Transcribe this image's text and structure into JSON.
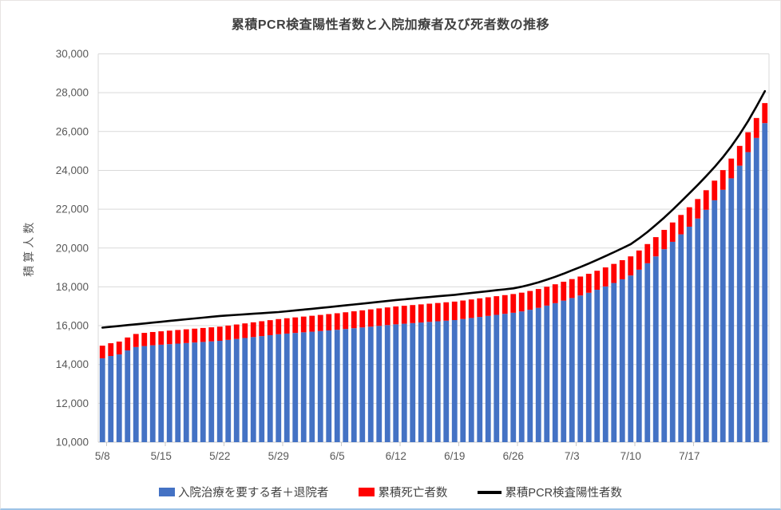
{
  "chart_data": {
    "type": "bar",
    "subtype": "stacked-bar-with-line",
    "title": "累積PCR検査陽性者数と入院加療者及び死者数の推移",
    "xlabel": "",
    "ylabel": "積算人数",
    "ylim": [
      10000,
      30000
    ],
    "ytick_step": 2000,
    "grid": true,
    "legend_position": "bottom",
    "y_tick_labels": [
      "10,000",
      "12,000",
      "14,000",
      "16,000",
      "18,000",
      "20,000",
      "22,000",
      "24,000",
      "26,000",
      "28,000",
      "30,000"
    ],
    "x_tick_labels": [
      "5/8",
      "5/15",
      "5/22",
      "5/29",
      "6/5",
      "6/12",
      "6/19",
      "6/26",
      "7/3",
      "7/10",
      "7/17"
    ],
    "x_label_interval": 7,
    "categories": [
      "5/8",
      "5/9",
      "5/10",
      "5/11",
      "5/12",
      "5/13",
      "5/14",
      "5/15",
      "5/16",
      "5/17",
      "5/18",
      "5/19",
      "5/20",
      "5/21",
      "5/22",
      "5/23",
      "5/24",
      "5/25",
      "5/26",
      "5/27",
      "5/28",
      "5/29",
      "5/30",
      "5/31",
      "6/1",
      "6/2",
      "6/3",
      "6/4",
      "6/5",
      "6/6",
      "6/7",
      "6/8",
      "6/9",
      "6/10",
      "6/11",
      "6/12",
      "6/13",
      "6/14",
      "6/15",
      "6/16",
      "6/17",
      "6/18",
      "6/19",
      "6/20",
      "6/21",
      "6/22",
      "6/23",
      "6/24",
      "6/25",
      "6/26",
      "6/27",
      "6/28",
      "6/29",
      "6/30",
      "7/1",
      "7/2",
      "7/3",
      "7/4",
      "7/5",
      "7/6",
      "7/7",
      "7/8",
      "7/9",
      "7/10",
      "7/11",
      "7/12",
      "7/13",
      "7/14",
      "7/15",
      "7/16",
      "7/17",
      "7/18",
      "7/19",
      "7/20",
      "7/21",
      "7/22",
      "7/23",
      "7/24",
      "7/25",
      "7/26"
    ],
    "series": [
      {
        "name": "入院治療を要する者＋退院者",
        "type": "bar",
        "stack": true,
        "color": "#4472C4",
        "values": [
          14320,
          14440,
          14520,
          14725,
          14900,
          14950,
          14990,
          15020,
          15049,
          15077,
          15106,
          15134,
          15163,
          15191,
          15220,
          15269,
          15317,
          15366,
          15414,
          15463,
          15511,
          15560,
          15593,
          15626,
          15659,
          15691,
          15724,
          15757,
          15790,
          15830,
          15870,
          15910,
          15950,
          15990,
          16030,
          16070,
          16101,
          16133,
          16164,
          16196,
          16227,
          16259,
          16290,
          16344,
          16397,
          16451,
          16504,
          16558,
          16611,
          16665,
          16735,
          16820,
          16920,
          17035,
          17160,
          17290,
          17425,
          17555,
          17695,
          17850,
          18020,
          18200,
          18390,
          18585,
          18885,
          19215,
          19570,
          19940,
          20320,
          20705,
          21100,
          21520,
          21970,
          22460,
          23000,
          23590,
          24240,
          24940,
          25670,
          26435
        ]
      },
      {
        "name": "累積死亡者数",
        "type": "bar",
        "stack": true,
        "color": "#FF0000",
        "values": [
          650,
          656,
          661,
          667,
          673,
          679,
          684,
          690,
          696,
          701,
          707,
          713,
          719,
          724,
          730,
          737,
          744,
          751,
          759,
          766,
          773,
          780,
          790,
          800,
          810,
          820,
          830,
          840,
          850,
          860,
          870,
          880,
          890,
          900,
          910,
          920,
          924,
          929,
          933,
          937,
          941,
          946,
          950,
          952,
          954,
          956,
          959,
          961,
          963,
          965,
          966,
          968,
          969,
          971,
          972,
          974,
          975,
          976,
          978,
          979,
          981,
          982,
          984,
          985,
          987,
          989,
          991,
          994,
          996,
          998,
          1000,
          1003,
          1007,
          1010,
          1013,
          1017,
          1020,
          1023,
          1027,
          1030
        ]
      },
      {
        "name": "累積PCR検査陽性者数",
        "type": "line",
        "color": "#000000",
        "values": [
          15900,
          15943,
          15986,
          16029,
          16071,
          16114,
          16157,
          16200,
          16243,
          16286,
          16329,
          16371,
          16414,
          16457,
          16500,
          16529,
          16557,
          16586,
          16614,
          16643,
          16671,
          16700,
          16743,
          16786,
          16829,
          16871,
          16914,
          16957,
          17000,
          17046,
          17091,
          17137,
          17183,
          17229,
          17274,
          17320,
          17359,
          17397,
          17436,
          17474,
          17513,
          17551,
          17590,
          17637,
          17684,
          17731,
          17779,
          17826,
          17873,
          17920,
          18010,
          18115,
          18235,
          18370,
          18520,
          18680,
          18850,
          19020,
          19200,
          19390,
          19585,
          19785,
          19990,
          20200,
          20500,
          20830,
          21190,
          21570,
          21970,
          22390,
          22820,
          23250,
          23700,
          24170,
          24680,
          25240,
          25860,
          26540,
          27290,
          28080
        ]
      }
    ],
    "colors": {
      "gridline": "#D9D9D9",
      "axis_line": "#C9C9C9",
      "tick_label": "#595959",
      "title_text": "#404040"
    }
  }
}
